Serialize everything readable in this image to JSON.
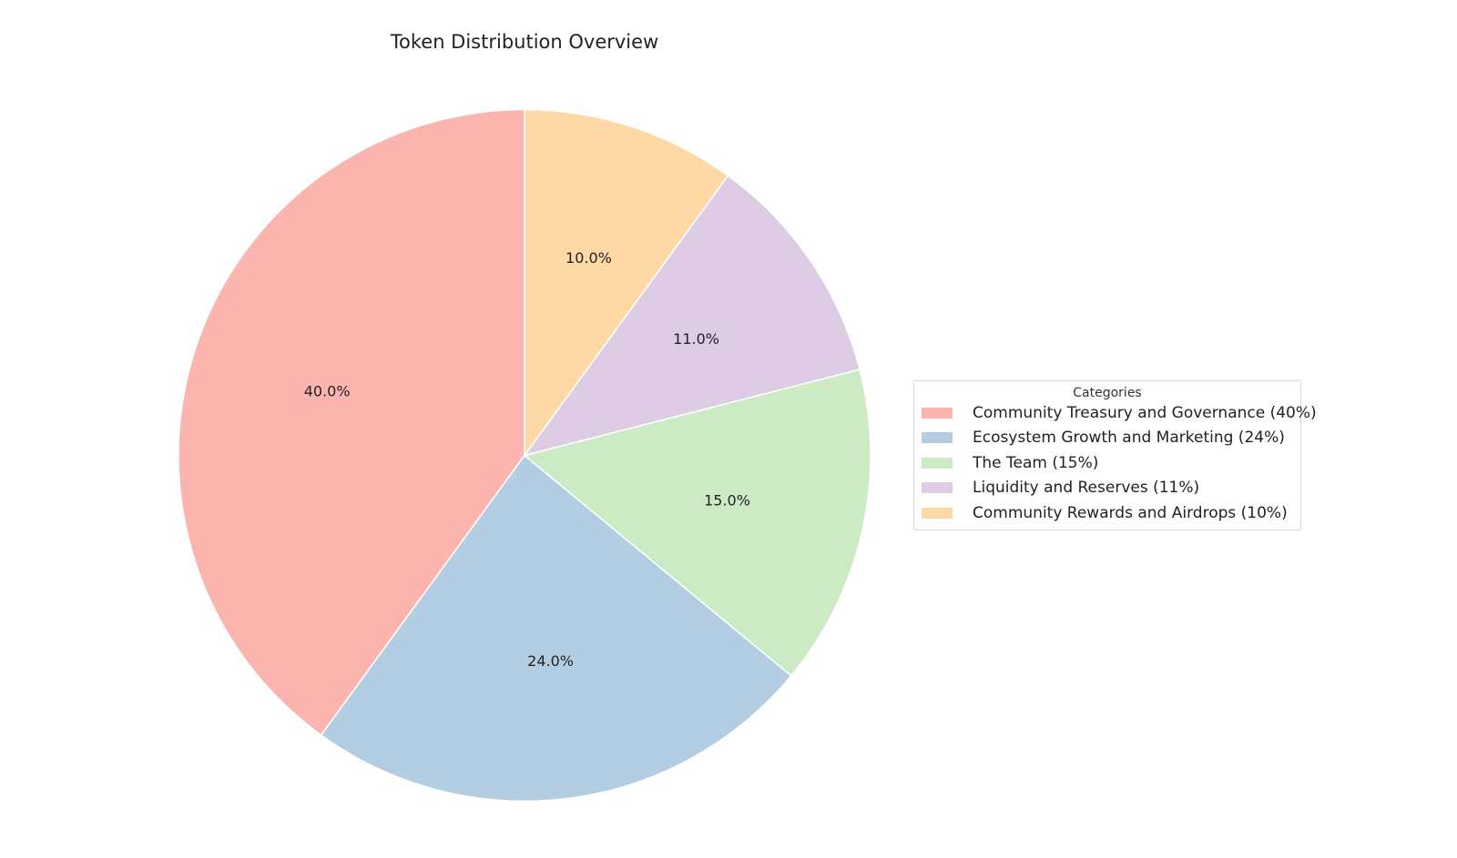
{
  "chart_data": {
    "type": "pie",
    "title": "Token Distribution Overview",
    "categories": [
      "Community Treasury and Governance",
      "Ecosystem Growth and Marketing",
      "The Team",
      "Liquidity and Reserves",
      "Community Rewards and Airdrops"
    ],
    "values": [
      40,
      24,
      15,
      11,
      10
    ],
    "data_labels": [
      "40.0%",
      "24.0%",
      "15.0%",
      "11.0%",
      "10.0%"
    ],
    "colors": [
      "#fbb4ae",
      "#b3cde3",
      "#ccebc5",
      "#decbe4",
      "#fed9a6"
    ],
    "start_angle_deg": 90,
    "direction": "counterclockwise",
    "legend": {
      "title": "Categories",
      "placement": "right",
      "entries": [
        "Community Treasury and Governance (40%)",
        "Ecosystem Growth and Marketing (24%)",
        "The Team (15%)",
        "Liquidity and Reserves (11%)",
        "Community Rewards and Airdrops (10%)"
      ]
    }
  }
}
